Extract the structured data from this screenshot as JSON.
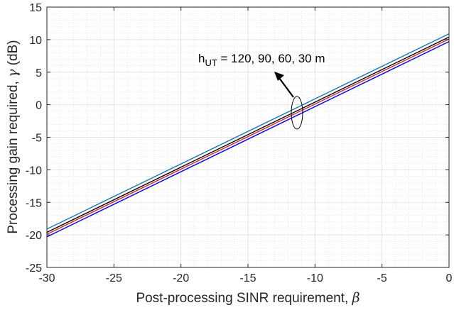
{
  "chart_data": {
    "type": "line",
    "xlabel": "Post-processing SINR requirement, ",
    "xlabel_symbol": "β",
    "ylabel": "Processing gain required, ",
    "ylabel_symbol": "γ",
    "ylabel_unit": " (dB)",
    "xlim": [
      -30,
      0
    ],
    "ylim": [
      -25,
      15
    ],
    "xticks": [
      -30,
      -25,
      -20,
      -15,
      -10,
      -5,
      0
    ],
    "yticks": [
      -25,
      -20,
      -15,
      -10,
      -5,
      0,
      5,
      10,
      15
    ],
    "grid": true,
    "minor_grid": true,
    "series": [
      {
        "values": [
          [
            -30,
            -19.1
          ],
          [
            0,
            10.9
          ]
        ],
        "color": "#1f77b4"
      },
      {
        "values": [
          [
            -30,
            -19.6
          ],
          [
            0,
            10.4
          ]
        ],
        "color": "#000000"
      },
      {
        "values": [
          [
            -30,
            -19.9
          ],
          [
            0,
            10.1
          ]
        ],
        "color": "#d62728"
      },
      {
        "values": [
          [
            -30,
            -20.3
          ],
          [
            0,
            9.7
          ]
        ],
        "color": "#0000ff"
      }
    ],
    "annotation": {
      "prefix": "h",
      "subscript": "UT",
      "text": " = 120, 90, 60, 30 m"
    }
  }
}
